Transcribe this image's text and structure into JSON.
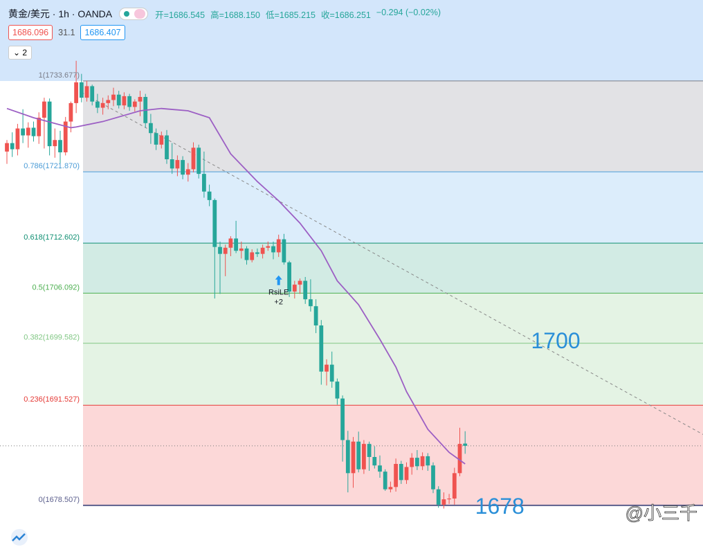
{
  "chart_data": {
    "type": "candlestick",
    "header": {
      "title": "黄金/美元 · 1h · OANDA",
      "ohlc": [
        "开=1686.545",
        "高=1688.150",
        "低=1685.215",
        "收=1686.251",
        "−0.294 (−0.02%)"
      ],
      "sell": "1686.096",
      "spread": "31.1",
      "buy": "1686.407",
      "indicators": "2"
    },
    "xlim": [
      -1.3,
      130.65
    ],
    "ylim": [
      1673.1,
      1744.2
    ],
    "up_color": "#ef5350",
    "down_color": "#26a69a",
    "open": [
      1724.5,
      1725.6,
      1724.8,
      1727.5,
      1726.6,
      1727.6,
      1726.5,
      1728.9,
      1731.0,
      1725.2,
      1726.0,
      1724.4,
      1728.4,
      1730.8,
      1733.5,
      1731.5,
      1733.0,
      1731.0,
      1730.2,
      1730.8,
      1731.2,
      1731.9,
      1730.5,
      1731.7,
      1730.3,
      1731.0,
      1731.6,
      1728.2,
      1726.9,
      1725.4,
      1726.6,
      1723.5,
      1722.3,
      1723.4,
      1721.5,
      1722.2,
      1725.0,
      1721.6,
      1719.3,
      1718.2,
      1712.1,
      1711.2,
      1712.0,
      1713.2,
      1711.6,
      1711.9,
      1710.4,
      1711.4,
      1711.2,
      1712.0,
      1712.2,
      1711.4,
      1713.1,
      1710.1,
      1706.3,
      1707.2,
      1707.7,
      1705.3,
      1704.4,
      1701.9,
      1695.9,
      1696.8,
      1694.6,
      1692.4,
      1687.0,
      1682.7,
      1686.8,
      1683.2,
      1686.5,
      1684.8,
      1683.7,
      1682.9,
      1680.6,
      1680.9,
      1683.9,
      1681.8,
      1683.5,
      1684.7,
      1683.6,
      1684.9,
      1683.7,
      1680.6,
      1678.6,
      1679.3,
      1679.4,
      1682.7,
      1686.545
    ],
    "high": [
      1726.0,
      1727.0,
      1728.1,
      1730.0,
      1728.3,
      1728.4,
      1729.6,
      1731.5,
      1731.4,
      1727.5,
      1727.2,
      1729.0,
      1731.0,
      1736.3,
      1734.6,
      1733.7,
      1733.2,
      1732.0,
      1731.5,
      1731.8,
      1732.8,
      1732.4,
      1732.2,
      1732.0,
      1731.3,
      1732.4,
      1732.0,
      1729.4,
      1727.5,
      1727.1,
      1727.3,
      1725.6,
      1724.0,
      1723.9,
      1723.0,
      1725.7,
      1725.4,
      1724.5,
      1720.2,
      1718.4,
      1712.8,
      1712.4,
      1713.5,
      1715.5,
      1712.8,
      1712.2,
      1711.8,
      1711.9,
      1712.4,
      1712.8,
      1712.8,
      1713.7,
      1713.8,
      1710.3,
      1707.7,
      1708.0,
      1708.2,
      1707.9,
      1705.3,
      1702.6,
      1697.5,
      1698.5,
      1695.0,
      1692.8,
      1688.2,
      1687.4,
      1688.1,
      1687.0,
      1686.8,
      1686.2,
      1685.0,
      1683.2,
      1681.6,
      1684.6,
      1684.3,
      1684.1,
      1685.3,
      1685.7,
      1685.4,
      1685.3,
      1684.1,
      1681.0,
      1680.2,
      1680.0,
      1683.4,
      1688.6,
      1688.15
    ],
    "low": [
      1722.9,
      1723.8,
      1724.0,
      1725.6,
      1725.0,
      1725.8,
      1725.5,
      1724.9,
      1724.0,
      1723.7,
      1722.3,
      1724.0,
      1727.0,
      1729.5,
      1730.9,
      1731.0,
      1730.5,
      1729.5,
      1729.3,
      1730.0,
      1730.4,
      1730.1,
      1730.0,
      1729.8,
      1729.7,
      1729.1,
      1727.6,
      1725.5,
      1724.7,
      1724.9,
      1722.9,
      1721.6,
      1721.3,
      1720.9,
      1720.6,
      1721.8,
      1721.0,
      1718.5,
      1717.4,
      1705.4,
      1706.0,
      1708.3,
      1710.9,
      1711.3,
      1710.6,
      1709.8,
      1710.1,
      1710.8,
      1710.6,
      1711.6,
      1710.5,
      1710.8,
      1709.8,
      1705.6,
      1705.4,
      1706.0,
      1704.7,
      1703.7,
      1700.9,
      1694.2,
      1694.1,
      1693.8,
      1691.6,
      1684.2,
      1680.2,
      1680.8,
      1682.8,
      1682.6,
      1683.0,
      1683.3,
      1682.1,
      1680.4,
      1680.2,
      1680.3,
      1681.3,
      1681.3,
      1682.5,
      1683.1,
      1683.1,
      1683.0,
      1680.1,
      1678.2,
      1678.1,
      1678.7,
      1678.6,
      1682.3,
      1685.215
    ],
    "close": [
      1725.6,
      1724.8,
      1727.5,
      1726.6,
      1727.6,
      1726.5,
      1728.9,
      1731.0,
      1725.2,
      1726.0,
      1724.4,
      1728.4,
      1730.8,
      1733.5,
      1731.5,
      1733.0,
      1731.0,
      1730.2,
      1730.8,
      1731.2,
      1731.9,
      1730.5,
      1731.7,
      1730.3,
      1731.0,
      1731.6,
      1728.2,
      1726.9,
      1725.4,
      1726.6,
      1723.5,
      1722.3,
      1723.4,
      1721.5,
      1722.2,
      1725.0,
      1721.6,
      1719.3,
      1718.2,
      1712.1,
      1711.2,
      1712.0,
      1713.2,
      1711.6,
      1711.9,
      1710.4,
      1711.4,
      1711.2,
      1712.0,
      1712.2,
      1711.4,
      1713.1,
      1710.1,
      1706.3,
      1707.2,
      1707.7,
      1705.3,
      1704.4,
      1701.9,
      1695.9,
      1696.8,
      1694.6,
      1692.4,
      1687.0,
      1682.7,
      1686.8,
      1683.2,
      1686.5,
      1684.8,
      1683.7,
      1682.9,
      1680.6,
      1680.9,
      1683.9,
      1681.8,
      1683.5,
      1684.7,
      1683.6,
      1684.9,
      1683.7,
      1680.6,
      1678.6,
      1679.3,
      1679.4,
      1682.7,
      1686.5,
      1686.251
    ],
    "ma": {
      "color": "#9c5fc4",
      "x": [
        0,
        5,
        12,
        13,
        18,
        25,
        29,
        34,
        38,
        42,
        47,
        51,
        55,
        59,
        62,
        66,
        70,
        73,
        75,
        79,
        83,
        86
      ],
      "values": [
        1730.1,
        1728.9,
        1727.6,
        1727.7,
        1728.4,
        1729.8,
        1730.1,
        1729.8,
        1728.9,
        1724.2,
        1720.6,
        1718.1,
        1715.2,
        1711.6,
        1707.7,
        1704.6,
        1700.1,
        1696.5,
        1693.3,
        1688.4,
        1685.4,
        1683.9
      ]
    },
    "trendline": {
      "x": [
        14,
        131
      ],
      "values": [
        1732.2,
        1687.6
      ]
    },
    "fib": [
      {
        "label": "1(1733.677)",
        "value": 1733.677,
        "color": "#787b86",
        "fill": "#e2e2e5"
      },
      {
        "label": "0.786(1721.870)",
        "value": 1721.87,
        "color": "#4a9bd6",
        "fill": "#dcedfb"
      },
      {
        "label": "0.618(1712.602)",
        "value": 1712.602,
        "color": "#0f8f72",
        "fill": "#d2ebe4"
      },
      {
        "label": "0.5(1706.092)",
        "value": 1706.092,
        "color": "#4caf50",
        "fill": "#e4f3e4"
      },
      {
        "label": "0.382(1699.582)",
        "value": 1699.582,
        "color": "#81c784",
        "fill": "#e4f3e4"
      },
      {
        "label": "0.236(1691.527)",
        "value": 1691.527,
        "color": "#e53935",
        "fill": "#fcd8d8"
      },
      {
        "label": "0(1678.507)",
        "value": 1678.507,
        "color": "#5b5e8c",
        "fill": "none"
      }
    ],
    "signal": {
      "index": 51,
      "value": 1708.4,
      "label": "RsiLE",
      "qty": "+2"
    },
    "annotations": [
      {
        "text": "1700",
        "x": 103,
        "value": 1699.7
      },
      {
        "text": "1678",
        "x": 92.5,
        "value": 1678.2
      }
    ],
    "watermark": "@小三千"
  }
}
